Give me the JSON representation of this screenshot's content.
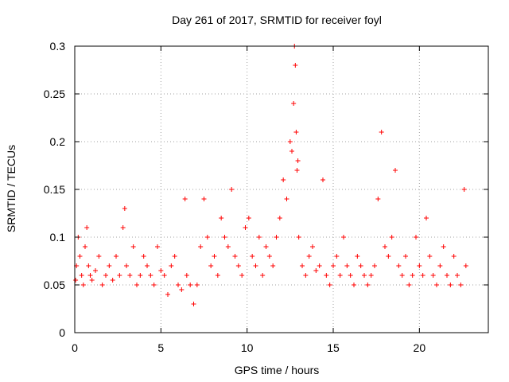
{
  "chart_data": {
    "type": "scatter",
    "title": "Day 261 of 2017, SRMTID for receiver foyl",
    "xlabel": "GPS time / hours",
    "ylabel": "SRMTID / TECUs",
    "xlim": [
      0,
      24
    ],
    "ylim": [
      0,
      0.3
    ],
    "xticks": [
      0,
      5,
      10,
      15,
      20
    ],
    "xtick_labels": [
      "0",
      "5",
      "10",
      "15",
      "20"
    ],
    "yticks": [
      0,
      0.05,
      0.1,
      0.15,
      0.2,
      0.25,
      0.3
    ],
    "ytick_labels": [
      "0",
      "0.05",
      "0.1",
      "0.15",
      "0.2",
      "0.25",
      "0.3"
    ],
    "grid": true,
    "marker": "+",
    "color": "#ff0000",
    "series": [
      {
        "name": "SRMTID",
        "x": [
          0.05,
          0.1,
          0.2,
          0.3,
          0.4,
          0.5,
          0.6,
          0.7,
          0.8,
          0.9,
          1.0,
          1.2,
          1.4,
          1.6,
          1.8,
          2.0,
          2.2,
          2.4,
          2.6,
          2.8,
          2.9,
          3.0,
          3.2,
          3.4,
          3.6,
          3.8,
          4.0,
          4.2,
          4.4,
          4.6,
          4.8,
          5.0,
          5.2,
          5.4,
          5.6,
          5.8,
          6.0,
          6.2,
          6.4,
          6.5,
          6.7,
          6.9,
          7.1,
          7.3,
          7.5,
          7.7,
          7.9,
          8.1,
          8.3,
          8.5,
          8.7,
          8.9,
          9.1,
          9.3,
          9.5,
          9.7,
          9.9,
          10.1,
          10.3,
          10.5,
          10.7,
          10.9,
          11.1,
          11.3,
          11.5,
          11.7,
          11.9,
          12.1,
          12.3,
          12.5,
          12.6,
          12.7,
          12.75,
          12.8,
          12.85,
          12.9,
          12.95,
          13.0,
          13.2,
          13.4,
          13.6,
          13.8,
          14.0,
          14.2,
          14.4,
          14.6,
          14.8,
          15.0,
          15.2,
          15.4,
          15.6,
          15.8,
          16.0,
          16.2,
          16.4,
          16.6,
          16.8,
          17.0,
          17.2,
          17.4,
          17.6,
          17.8,
          18.0,
          18.2,
          18.4,
          18.6,
          18.8,
          19.0,
          19.2,
          19.4,
          19.6,
          19.8,
          20.0,
          20.2,
          20.4,
          20.6,
          20.8,
          21.0,
          21.2,
          21.4,
          21.6,
          21.8,
          22.0,
          22.2,
          22.4,
          22.6,
          22.7
        ],
        "y": [
          0.055,
          0.07,
          0.1,
          0.08,
          0.06,
          0.05,
          0.09,
          0.11,
          0.07,
          0.06,
          0.055,
          0.065,
          0.08,
          0.05,
          0.06,
          0.07,
          0.055,
          0.08,
          0.06,
          0.11,
          0.13,
          0.07,
          0.06,
          0.09,
          0.05,
          0.06,
          0.08,
          0.07,
          0.06,
          0.05,
          0.09,
          0.065,
          0.06,
          0.04,
          0.07,
          0.08,
          0.05,
          0.045,
          0.14,
          0.06,
          0.05,
          0.03,
          0.05,
          0.09,
          0.14,
          0.1,
          0.07,
          0.08,
          0.06,
          0.12,
          0.1,
          0.09,
          0.15,
          0.08,
          0.07,
          0.06,
          0.11,
          0.12,
          0.08,
          0.07,
          0.1,
          0.06,
          0.09,
          0.08,
          0.07,
          0.1,
          0.12,
          0.16,
          0.14,
          0.2,
          0.19,
          0.24,
          0.3,
          0.28,
          0.21,
          0.17,
          0.18,
          0.1,
          0.07,
          0.06,
          0.08,
          0.09,
          0.065,
          0.07,
          0.16,
          0.06,
          0.05,
          0.07,
          0.08,
          0.06,
          0.1,
          0.07,
          0.06,
          0.05,
          0.08,
          0.07,
          0.06,
          0.05,
          0.06,
          0.07,
          0.14,
          0.21,
          0.09,
          0.08,
          0.1,
          0.17,
          0.07,
          0.06,
          0.08,
          0.05,
          0.06,
          0.1,
          0.07,
          0.06,
          0.12,
          0.08,
          0.06,
          0.05,
          0.07,
          0.09,
          0.06,
          0.05,
          0.08,
          0.06,
          0.05,
          0.15,
          0.07
        ]
      }
    ]
  }
}
